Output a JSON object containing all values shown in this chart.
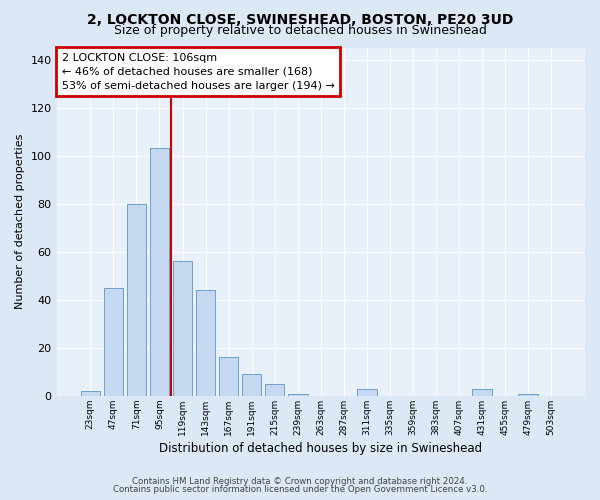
{
  "title1": "2, LOCKTON CLOSE, SWINESHEAD, BOSTON, PE20 3UD",
  "title2": "Size of property relative to detached houses in Swineshead",
  "xlabel": "Distribution of detached houses by size in Swineshead",
  "ylabel": "Number of detached properties",
  "bar_labels": [
    "23sqm",
    "47sqm",
    "71sqm",
    "95sqm",
    "119sqm",
    "143sqm",
    "167sqm",
    "191sqm",
    "215sqm",
    "239sqm",
    "263sqm",
    "287sqm",
    "311sqm",
    "335sqm",
    "359sqm",
    "383sqm",
    "407sqm",
    "431sqm",
    "455sqm",
    "479sqm",
    "503sqm"
  ],
  "bar_values": [
    2,
    45,
    80,
    103,
    56,
    44,
    16,
    9,
    5,
    1,
    0,
    0,
    3,
    0,
    0,
    0,
    0,
    3,
    0,
    1,
    0
  ],
  "bar_color": "#c5d8f0",
  "bar_edge_color": "#6a9fcf",
  "vline_x": 3.5,
  "annotation_title": "2 LOCKTON CLOSE: 106sqm",
  "annotation_line1": "← 46% of detached houses are smaller (168)",
  "annotation_line2": "53% of semi-detached houses are larger (194) →",
  "annotation_box_color": "#ffffff",
  "annotation_border_color": "#cc0000",
  "vline_color": "#cc0000",
  "ylim": [
    0,
    145
  ],
  "yticks": [
    0,
    20,
    40,
    60,
    80,
    100,
    120,
    140
  ],
  "footnote1": "Contains HM Land Registry data © Crown copyright and database right 2024.",
  "footnote2": "Contains public sector information licensed under the Open Government Licence v3.0.",
  "bg_color": "#dce8f5",
  "plot_bg_color": "#e8f0fa",
  "grid_color": "#ffffff",
  "title1_fontsize": 10,
  "title2_fontsize": 9
}
